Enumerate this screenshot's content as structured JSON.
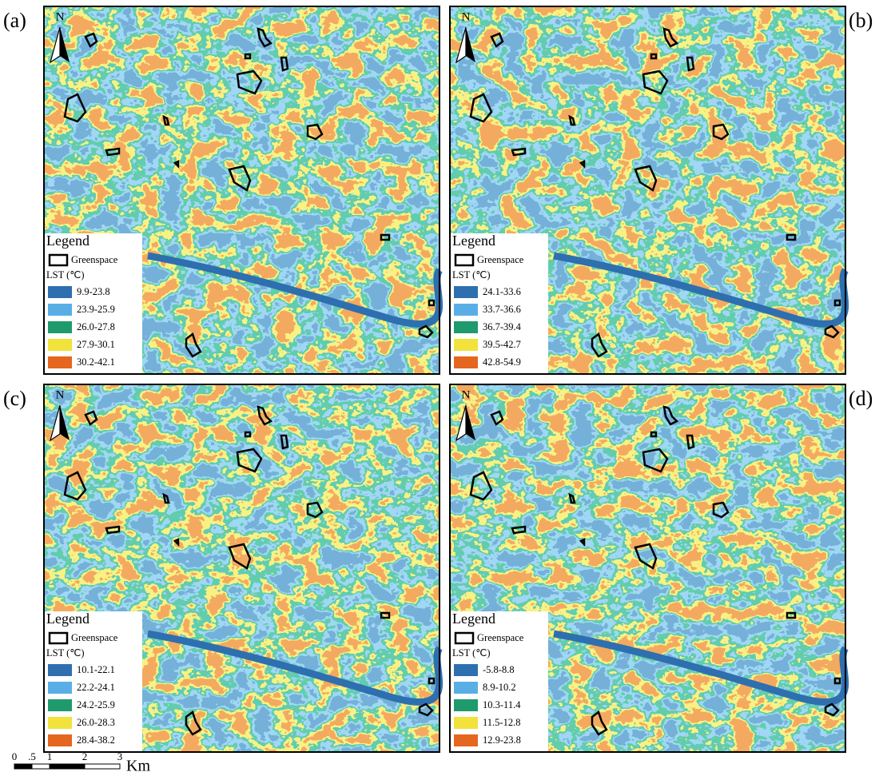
{
  "panels": [
    {
      "label": "(a)",
      "legend": {
        "title": "Legend",
        "greenspace": "Greenspace",
        "lst_title": "LST (℃)",
        "classes": [
          "9.9-23.8",
          "23.9-25.9",
          "26.0-27.8",
          "27.9-30.1",
          "30.2-42.1"
        ]
      }
    },
    {
      "label": "(b)",
      "legend": {
        "title": "Legend",
        "greenspace": "Greenspace",
        "lst_title": "LST (℃)",
        "classes": [
          "24.1-33.6",
          "33.7-36.6",
          "36.7-39.4",
          "39.5-42.7",
          "42.8-54.9"
        ]
      }
    },
    {
      "label": "(c)",
      "legend": {
        "title": "Legend",
        "greenspace": "Greenspace",
        "lst_title": "LST (℃)",
        "classes": [
          "10.1-22.1",
          "22.2-24.1",
          "24.2-25.9",
          "26.0-28.3",
          "28.4-38.2"
        ]
      }
    },
    {
      "label": "(d)",
      "legend": {
        "title": "Legend",
        "greenspace": "Greenspace",
        "lst_title": "LST (℃)",
        "classes": [
          "-5.8-8.8",
          "8.9-10.2",
          "10.3-11.4",
          "11.5-12.8",
          "12.9-23.8"
        ]
      }
    }
  ],
  "class_colors": [
    "#2e6fb0",
    "#5aaee6",
    "#1f9a6c",
    "#f1e23c",
    "#e5661e"
  ],
  "north": "N",
  "scale_bar": {
    "ticks": [
      "0",
      ".5",
      "1",
      "2",
      "3"
    ],
    "unit": "Km"
  }
}
